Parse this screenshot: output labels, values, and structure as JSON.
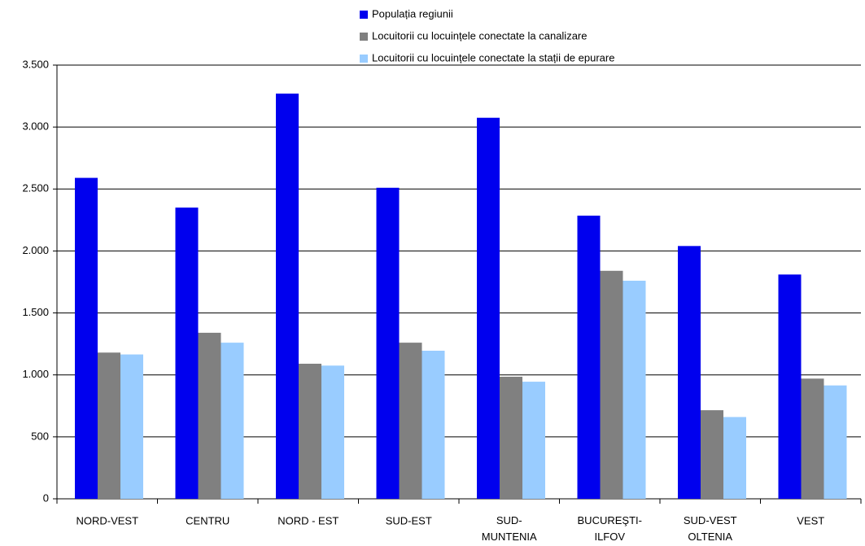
{
  "chart_data": {
    "type": "bar",
    "categories": [
      "NORD-VEST",
      "CENTRU",
      "NORD - EST",
      "SUD-EST",
      "SUD-\nMUNTENIA",
      "BUCUREŞTI-\nILFOV",
      "SUD-VEST\nOLTENIA",
      "VEST"
    ],
    "series": [
      {
        "name": "Populația regiunii",
        "color": "#0000ee",
        "values": [
          2590,
          2350,
          3270,
          2510,
          3075,
          2285,
          2040,
          1810
        ]
      },
      {
        "name": "Locuitorii cu locuințele conectate la canalizare",
        "color": "#808080",
        "values": [
          1180,
          1340,
          1090,
          1260,
          985,
          1840,
          715,
          970
        ]
      },
      {
        "name": "Locuitorii cu locuințele conectate la stații de epurare",
        "color": "#99ccff",
        "values": [
          1165,
          1260,
          1075,
          1195,
          945,
          1760,
          660,
          915
        ]
      }
    ],
    "ylim": [
      0,
      3500
    ],
    "yticks": [
      0,
      500,
      {
        "value": 1000,
        "label": "1.000"
      },
      {
        "value": 1500,
        "label": "1.500"
      },
      {
        "value": 2000,
        "label": "2.000"
      },
      {
        "value": 2500,
        "label": "2.500"
      },
      {
        "value": 3000,
        "label": "3.000"
      },
      {
        "value": 3500,
        "label": "3.500"
      }
    ],
    "grid": true
  }
}
